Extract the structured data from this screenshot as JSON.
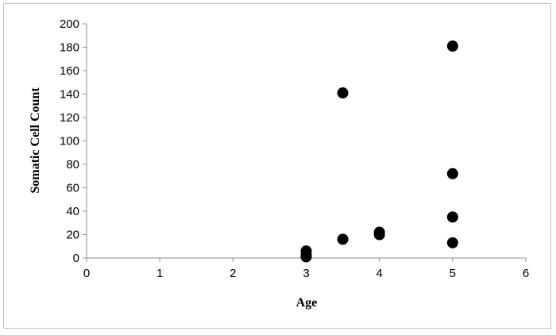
{
  "chart_data": {
    "type": "scatter",
    "title": "",
    "xlabel": "Age",
    "ylabel": "Somatic Cell Count",
    "xlim": [
      0,
      6
    ],
    "ylim": [
      0,
      200
    ],
    "x_ticks": [
      0,
      1,
      2,
      3,
      4,
      5,
      6
    ],
    "y_ticks": [
      0,
      20,
      40,
      60,
      80,
      100,
      120,
      140,
      160,
      180,
      200
    ],
    "grid": false,
    "legend": "none",
    "marker_color": "#000000",
    "series": [
      {
        "points": [
          {
            "x": 3,
            "y": 1
          },
          {
            "x": 3,
            "y": 3
          },
          {
            "x": 3,
            "y": 6
          },
          {
            "x": 3.5,
            "y": 16
          },
          {
            "x": 3.5,
            "y": 141
          },
          {
            "x": 4,
            "y": 20
          },
          {
            "x": 4,
            "y": 22
          },
          {
            "x": 5,
            "y": 13
          },
          {
            "x": 5,
            "y": 35
          },
          {
            "x": 5,
            "y": 72
          },
          {
            "x": 5,
            "y": 181
          }
        ]
      }
    ]
  }
}
